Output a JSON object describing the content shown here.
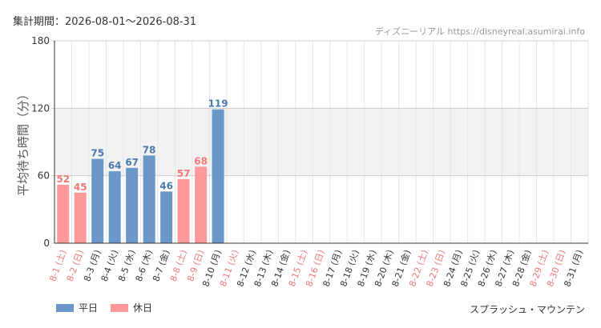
{
  "header": {
    "period": "集計期間：2026-08-01～2026-08-31",
    "source": "ディズニーリアル https://disneyreal.asumirai.info"
  },
  "footer": {
    "attraction": "スプラッシュ・マウンテン"
  },
  "legend": {
    "weekday_label": "平日",
    "holiday_label": "休日"
  },
  "colors": {
    "weekday": "#6a96c8",
    "holiday": "#ff9999",
    "weekday_label": "#4a78b0",
    "holiday_label": "#f07878",
    "band": "#f2f2f2"
  },
  "chart_data": {
    "type": "bar",
    "ylabel": "平均待ち時間（分）",
    "ylim": [
      0,
      180
    ],
    "yticks": [
      0,
      60,
      120,
      180
    ],
    "band": [
      60,
      120
    ],
    "grid": true,
    "legend_position": "bottom-left",
    "categories": [
      "8-1 (土)",
      "8-2 (日)",
      "8-3 (月)",
      "8-4 (火)",
      "8-5 (水)",
      "8-6 (木)",
      "8-7 (金)",
      "8-8 (土)",
      "8-9 (日)",
      "8-10 (月)",
      "8-11 (火)",
      "8-12 (水)",
      "8-13 (木)",
      "8-14 (金)",
      "8-15 (土)",
      "8-16 (日)",
      "8-17 (月)",
      "8-18 (火)",
      "8-19 (水)",
      "8-20 (木)",
      "8-21 (金)",
      "8-22 (土)",
      "8-23 (日)",
      "8-24 (月)",
      "8-25 (火)",
      "8-26 (水)",
      "8-27 (木)",
      "8-28 (金)",
      "8-29 (土)",
      "8-30 (日)",
      "8-31 (月)"
    ],
    "day_types": [
      "holiday",
      "holiday",
      "weekday",
      "weekday",
      "weekday",
      "weekday",
      "weekday",
      "holiday",
      "holiday",
      "weekday",
      "holiday",
      "weekday",
      "weekday",
      "weekday",
      "holiday",
      "holiday",
      "weekday",
      "weekday",
      "weekday",
      "weekday",
      "weekday",
      "holiday",
      "holiday",
      "weekday",
      "weekday",
      "weekday",
      "weekday",
      "weekday",
      "holiday",
      "holiday",
      "weekday"
    ],
    "values": [
      52,
      45,
      75,
      64,
      67,
      78,
      46,
      57,
      68,
      119,
      null,
      null,
      null,
      null,
      null,
      null,
      null,
      null,
      null,
      null,
      null,
      null,
      null,
      null,
      null,
      null,
      null,
      null,
      null,
      null,
      null
    ]
  }
}
